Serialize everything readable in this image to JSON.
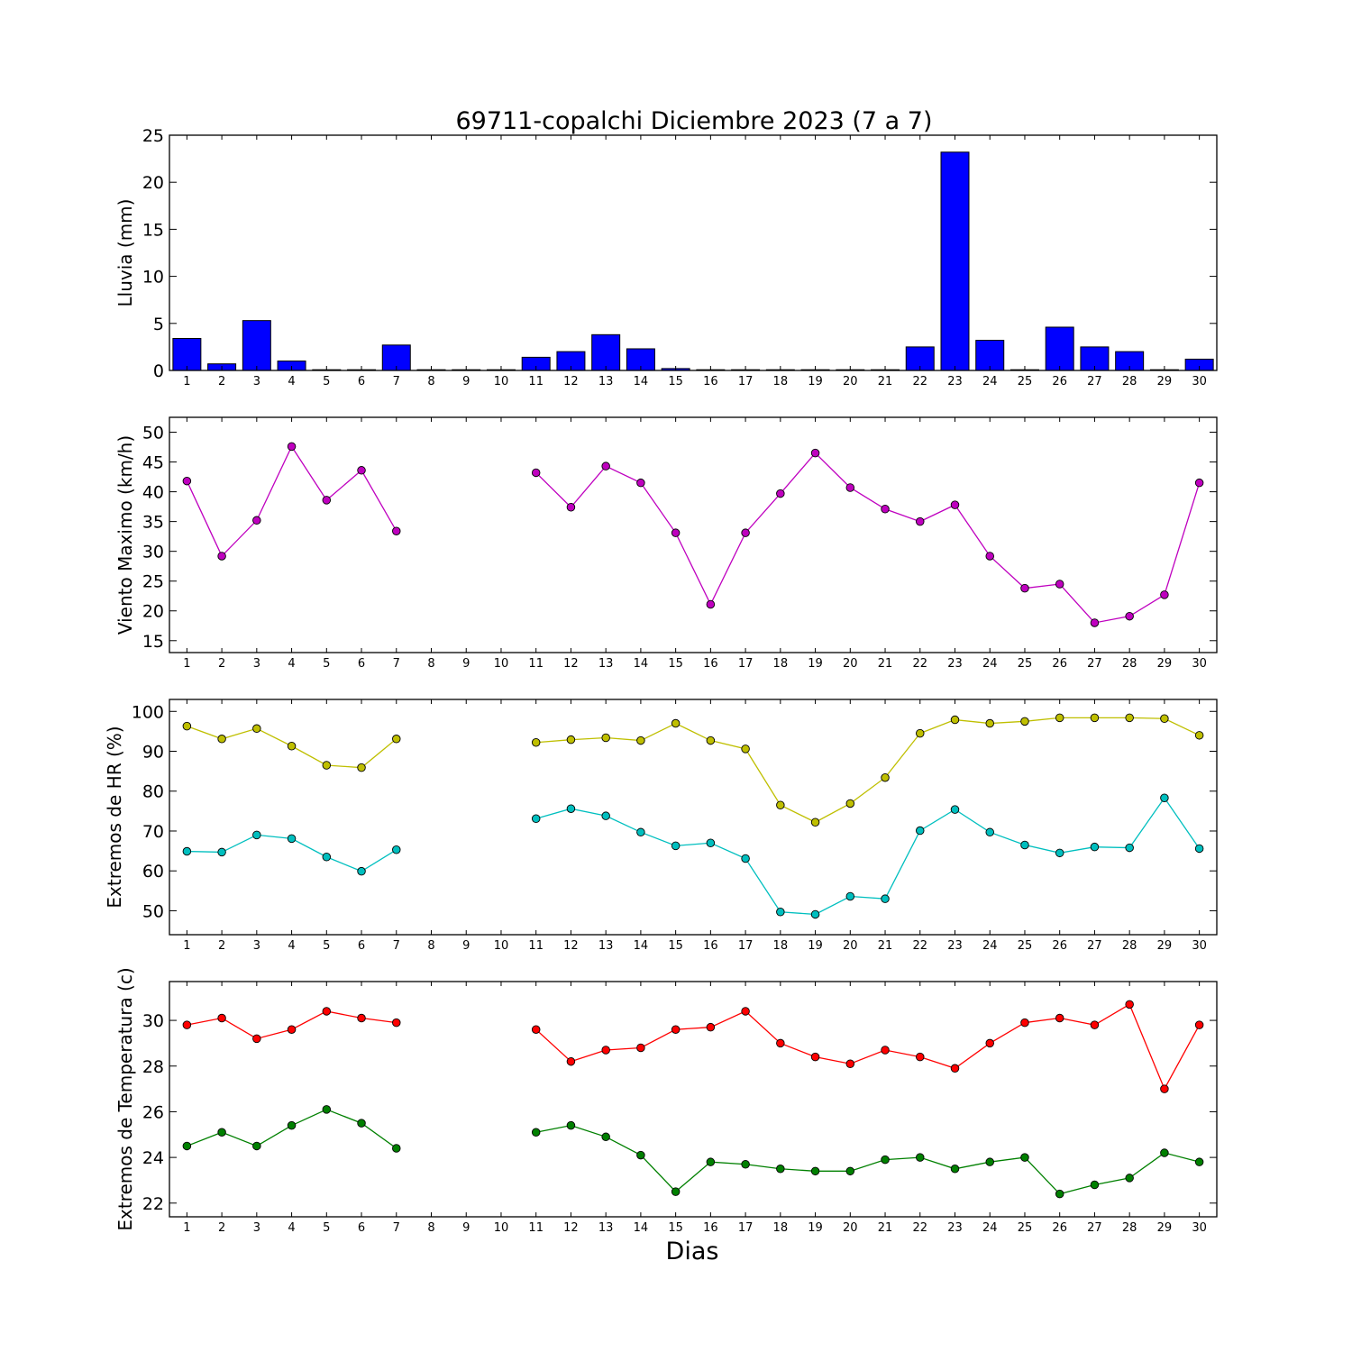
{
  "title": "69711-copalchi Diciembre 2023  (7 a 7)",
  "xlabel": "Dias",
  "chart_data": [
    {
      "type": "bar",
      "ylabel": "Lluvia (mm)",
      "ylim": [
        0,
        25
      ],
      "yticks": [
        0,
        5,
        10,
        15,
        20,
        25
      ],
      "x": [
        1,
        2,
        3,
        4,
        5,
        6,
        7,
        8,
        9,
        10,
        11,
        12,
        13,
        14,
        15,
        16,
        17,
        18,
        19,
        20,
        21,
        22,
        23,
        24,
        25,
        26,
        27,
        28,
        29,
        30
      ],
      "xlim": [
        0.5,
        30.5
      ],
      "series": [
        {
          "color": "#0000ff",
          "values": [
            3.4,
            0.7,
            5.3,
            1.0,
            0,
            0.05,
            2.7,
            0,
            0,
            0,
            1.4,
            2.0,
            3.8,
            2.3,
            0.2,
            0.05,
            0.05,
            0.05,
            0.05,
            0.05,
            0,
            2.5,
            23.2,
            3.2,
            0,
            4.6,
            2.5,
            2.0,
            0,
            1.2
          ]
        }
      ]
    },
    {
      "type": "line",
      "ylabel": "Viento Maximo (km/h)",
      "ylim": [
        13,
        52.5
      ],
      "yticks": [
        15,
        20,
        25,
        30,
        35,
        40,
        45,
        50
      ],
      "x": [
        1,
        2,
        3,
        4,
        5,
        6,
        7,
        8,
        9,
        10,
        11,
        12,
        13,
        14,
        15,
        16,
        17,
        18,
        19,
        20,
        21,
        22,
        23,
        24,
        25,
        26,
        27,
        28,
        29,
        30
      ],
      "xlim": [
        0.5,
        30.5
      ],
      "series": [
        {
          "color": "#bf00bf",
          "values": [
            41.8,
            29.2,
            35.2,
            47.6,
            38.6,
            43.6,
            33.4,
            null,
            null,
            null,
            43.2,
            37.4,
            44.3,
            41.5,
            33.1,
            21.1,
            33.1,
            39.7,
            46.5,
            40.7,
            37.1,
            35.0,
            37.8,
            29.2,
            23.8,
            24.5,
            18.0,
            19.1,
            22.7,
            41.5
          ]
        }
      ]
    },
    {
      "type": "line",
      "ylabel": "Extremos de HR (%)",
      "ylim": [
        44,
        103
      ],
      "yticks": [
        50,
        60,
        70,
        80,
        90,
        100
      ],
      "x": [
        1,
        2,
        3,
        4,
        5,
        6,
        7,
        8,
        9,
        10,
        11,
        12,
        13,
        14,
        15,
        16,
        17,
        18,
        19,
        20,
        21,
        22,
        23,
        24,
        25,
        26,
        27,
        28,
        29,
        30
      ],
      "xlim": [
        0.5,
        30.5
      ],
      "series": [
        {
          "color": "#bfbf00",
          "values": [
            96.3,
            93.1,
            95.7,
            91.3,
            86.5,
            85.9,
            93.1,
            null,
            null,
            null,
            92.2,
            92.9,
            93.4,
            92.7,
            97.0,
            92.7,
            90.6,
            76.5,
            72.2,
            76.9,
            83.4,
            94.5,
            97.9,
            97.0,
            97.5,
            98.4,
            98.4,
            98.4,
            98.2,
            94.0
          ]
        },
        {
          "color": "#00bfbf",
          "values": [
            64.9,
            64.7,
            69.0,
            68.1,
            63.5,
            59.9,
            65.3,
            null,
            null,
            null,
            73.1,
            75.6,
            73.8,
            69.7,
            66.3,
            67.0,
            63.1,
            49.7,
            49.1,
            53.6,
            53.0,
            70.1,
            75.4,
            69.7,
            66.5,
            64.5,
            66.0,
            65.8,
            78.3,
            65.6
          ]
        }
      ]
    },
    {
      "type": "line",
      "ylabel": "Extremos de Temperatura (c)",
      "ylim": [
        21.4,
        31.7
      ],
      "yticks": [
        22,
        24,
        26,
        28,
        30
      ],
      "x": [
        1,
        2,
        3,
        4,
        5,
        6,
        7,
        8,
        9,
        10,
        11,
        12,
        13,
        14,
        15,
        16,
        17,
        18,
        19,
        20,
        21,
        22,
        23,
        24,
        25,
        26,
        27,
        28,
        29,
        30
      ],
      "xlim": [
        0.5,
        30.5
      ],
      "series": [
        {
          "color": "#ff0000",
          "values": [
            29.8,
            30.1,
            29.2,
            29.6,
            30.4,
            30.1,
            29.9,
            null,
            null,
            null,
            29.6,
            28.2,
            28.7,
            28.8,
            29.6,
            29.7,
            30.4,
            29.0,
            28.4,
            28.1,
            28.7,
            28.4,
            27.9,
            29.0,
            29.9,
            30.1,
            29.8,
            30.7,
            27.0,
            29.8
          ]
        },
        {
          "color": "#008000",
          "values": [
            24.5,
            25.1,
            24.5,
            25.4,
            26.1,
            25.5,
            24.4,
            null,
            null,
            null,
            25.1,
            25.4,
            24.9,
            24.1,
            22.5,
            23.8,
            23.7,
            23.5,
            23.4,
            23.4,
            23.9,
            24.0,
            23.5,
            23.8,
            24.0,
            22.4,
            22.8,
            23.1,
            24.2,
            23.8
          ]
        }
      ]
    }
  ]
}
